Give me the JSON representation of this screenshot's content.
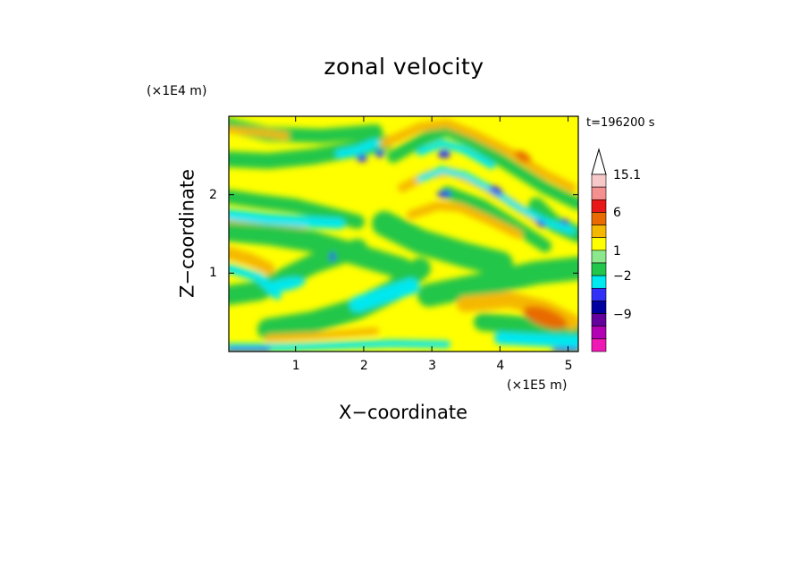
{
  "chart_data": {
    "type": "heatmap",
    "title": "zonal velocity",
    "xlabel": "X−coordinate",
    "ylabel": "Z−coordinate",
    "x_scale_label": "(×1E5 m)",
    "y_scale_label": "(×1E4 m)",
    "time_label": "t=196200 s",
    "xlim": [
      0.02,
      5.15
    ],
    "ylim": [
      0.0,
      3.0
    ],
    "x_ticks": [
      1,
      2,
      3,
      4,
      5
    ],
    "y_ticks": [
      1,
      2
    ],
    "x_tick_labels": [
      "1",
      "2",
      "3",
      "4",
      "5"
    ],
    "y_tick_labels": [
      "1",
      "2"
    ],
    "colorbar": {
      "levels_top_to_bottom": [
        "#f7c8c8",
        "#f49090",
        "#e81818",
        "#e86a00",
        "#f5b800",
        "#ffff00",
        "#8ce88c",
        "#22c64a",
        "#00e8f0",
        "#3030f8",
        "#0000a0",
        "#64009c",
        "#b400b4",
        "#f018b4"
      ],
      "arrow_color": "#ffffff",
      "labels": [
        {
          "text": "15.1",
          "level_index": 0
        },
        {
          "text": "6",
          "level_index": 3
        },
        {
          "text": "1",
          "level_index": 6
        },
        {
          "text": "−2",
          "level_index": 8
        },
        {
          "text": "−9",
          "level_index": 11
        }
      ]
    },
    "dominant_colors": {
      "positive_weak": "#ffff00",
      "positive_mid": "#f5b800",
      "positive_strong": "#e86a00",
      "near_zero": "#22c64a",
      "negative_weak": "#00e8f0",
      "negative_strong": "#3030f8"
    }
  }
}
